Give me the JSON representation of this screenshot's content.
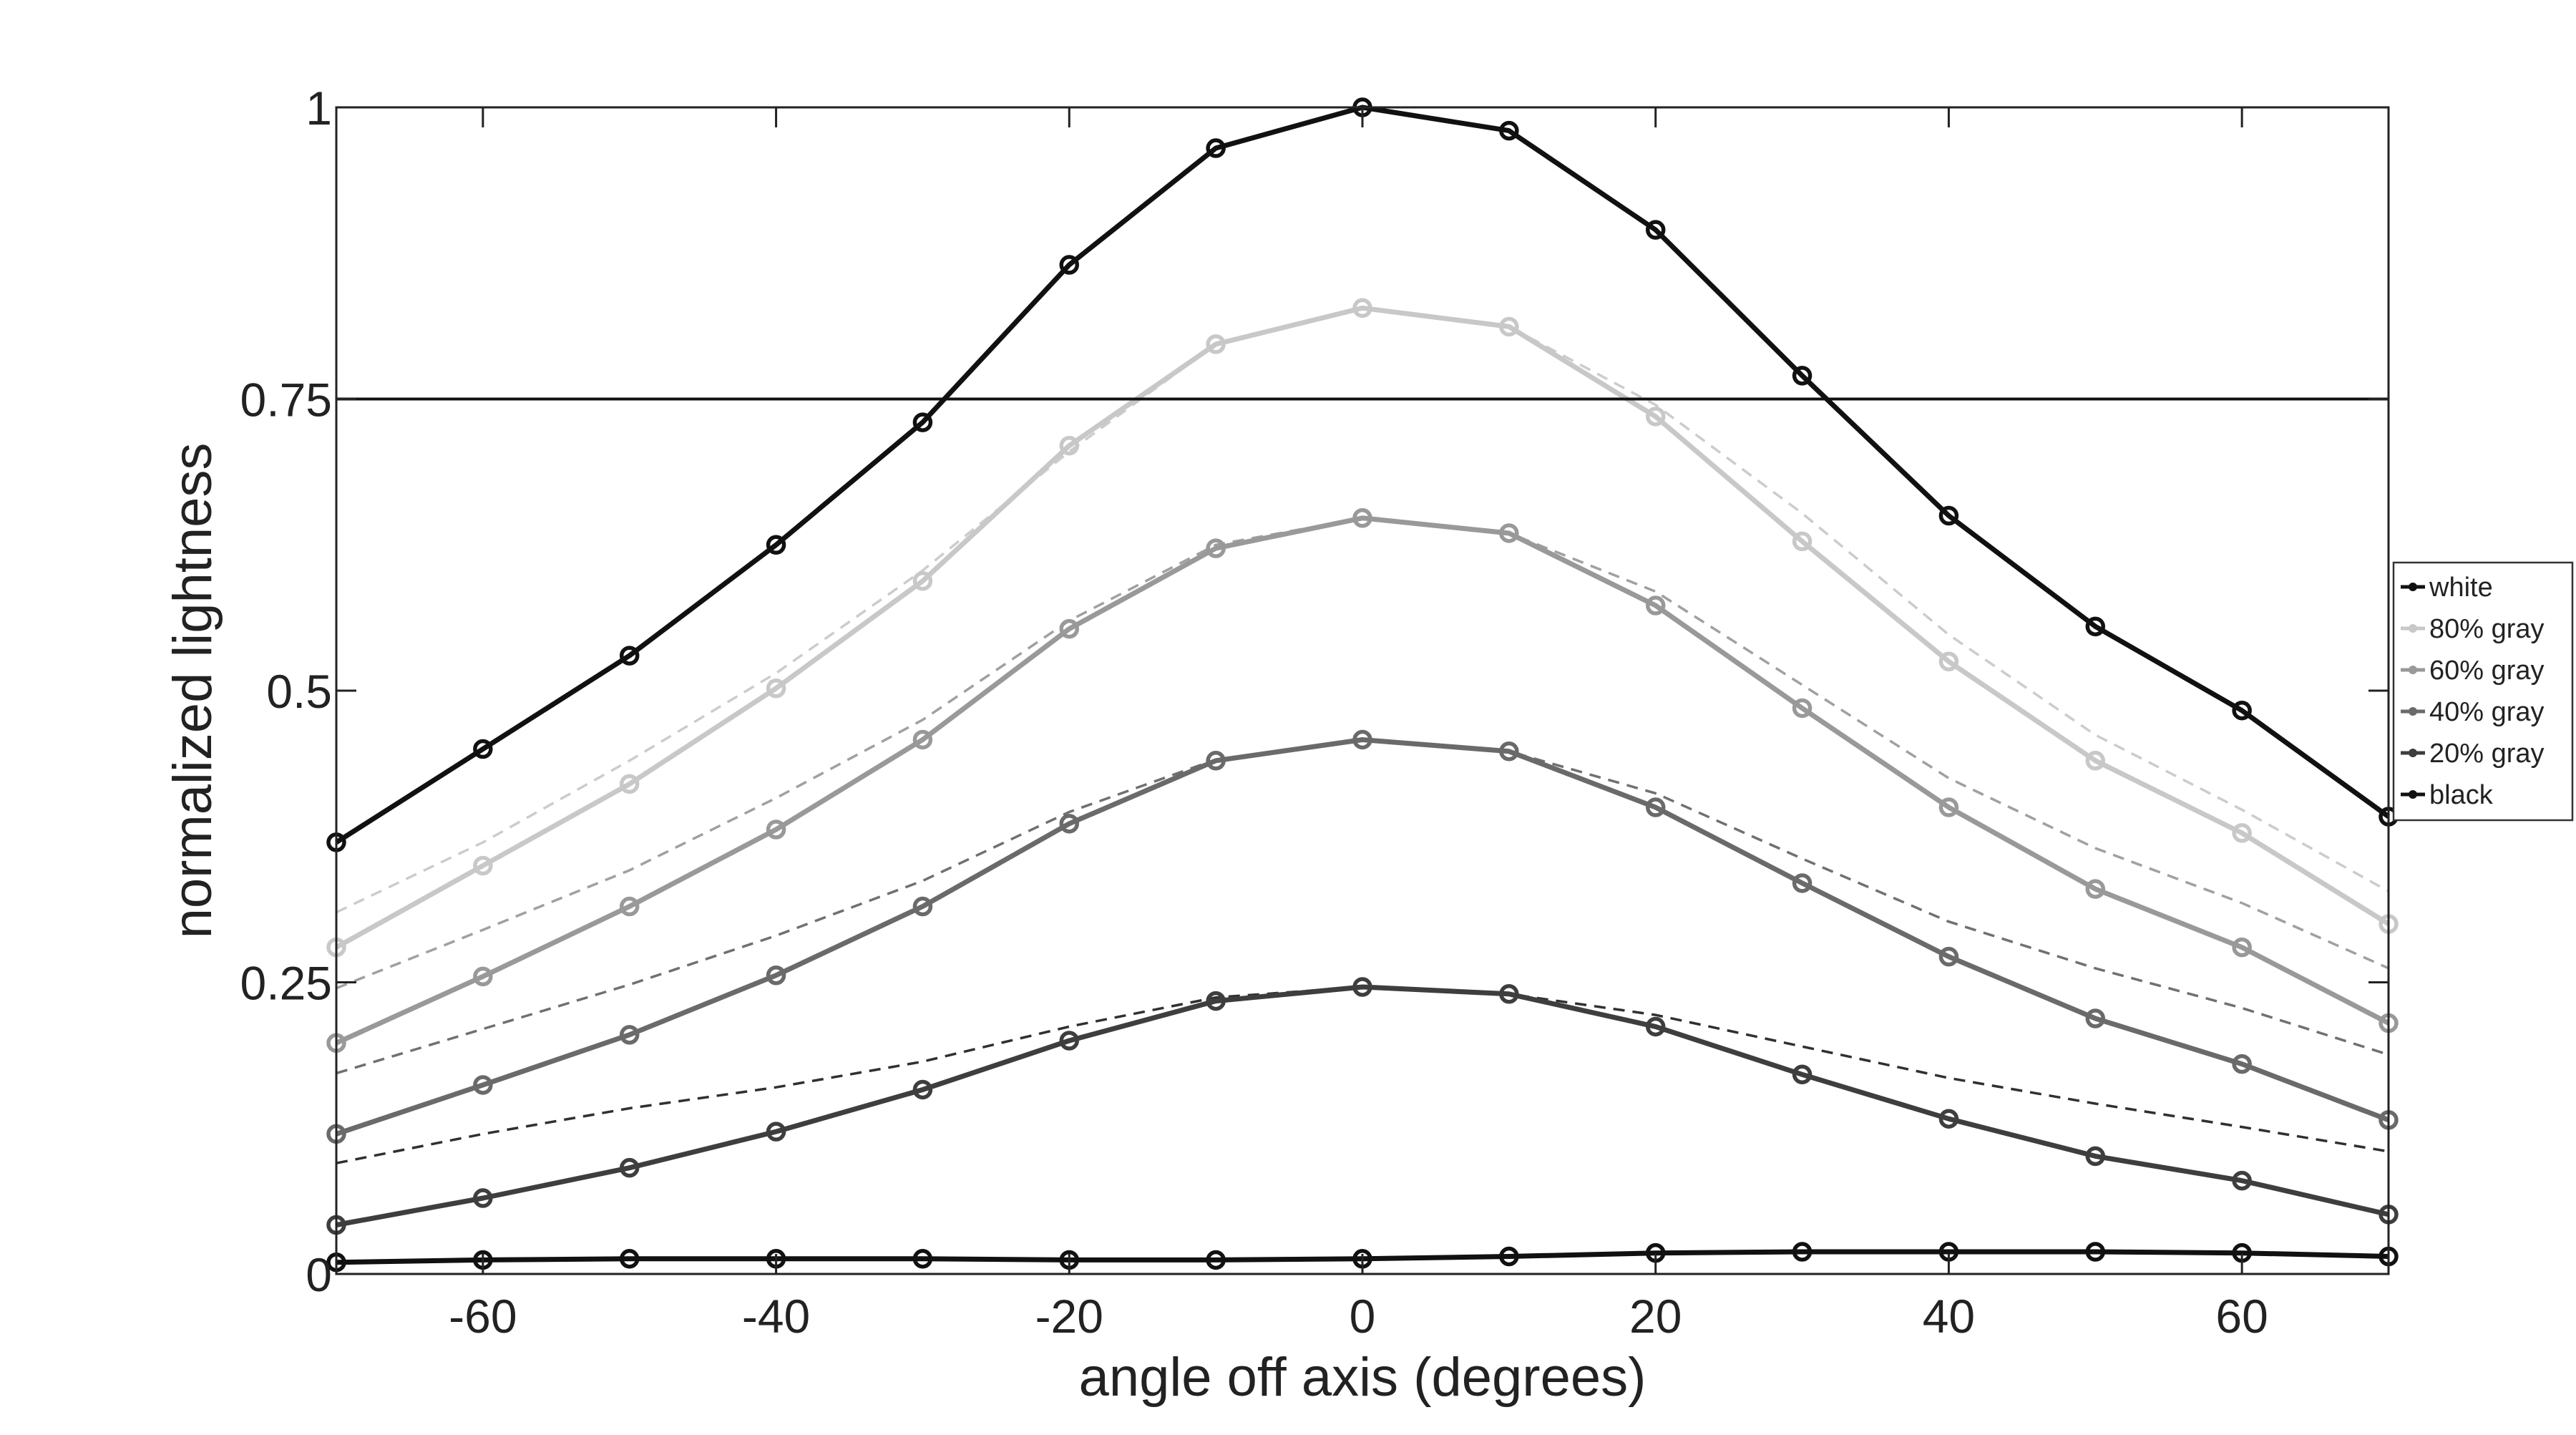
{
  "chart_data": {
    "type": "line",
    "title": "",
    "xlabel": "angle off axis (degrees)",
    "ylabel": "normalized lightness",
    "xlim": [
      -70,
      70
    ],
    "ylim": [
      0,
      1
    ],
    "xticks": [
      -60,
      -40,
      -20,
      0,
      20,
      40,
      60
    ],
    "xtick_labels": [
      "-60",
      "-40",
      "-20",
      "0",
      "20",
      "40",
      "60"
    ],
    "yticks": [
      0,
      0.25,
      0.5,
      0.75,
      1
    ],
    "ytick_labels": [
      "0",
      "0.25",
      "0.5",
      "0.75",
      "1"
    ],
    "grid": false,
    "legend_position": "right",
    "reference_line": {
      "y": 0.75
    },
    "x": [
      -70,
      -60,
      -50,
      -40,
      -30,
      -20,
      -10,
      0,
      10,
      20,
      30,
      40,
      50,
      60,
      70
    ],
    "series": [
      {
        "name": "white",
        "color": "#111111",
        "values": [
          0.37,
          0.45,
          0.53,
          0.625,
          0.73,
          0.865,
          0.965,
          1.0,
          0.98,
          0.895,
          0.77,
          0.65,
          0.555,
          0.483,
          0.392
        ]
      },
      {
        "name": "80% gray",
        "color": "#c8c8c8",
        "values": [
          0.28,
          0.35,
          0.42,
          0.502,
          0.594,
          0.71,
          0.797,
          0.828,
          0.812,
          0.735,
          0.628,
          0.525,
          0.44,
          0.378,
          0.3
        ]
      },
      {
        "name": "60% gray",
        "color": "#999999",
        "values": [
          0.198,
          0.255,
          0.315,
          0.381,
          0.458,
          0.553,
          0.622,
          0.648,
          0.635,
          0.573,
          0.485,
          0.4,
          0.33,
          0.28,
          0.215
        ]
      },
      {
        "name": "40% gray",
        "color": "#6a6a6a",
        "values": [
          0.12,
          0.162,
          0.205,
          0.256,
          0.315,
          0.386,
          0.44,
          0.458,
          0.448,
          0.4,
          0.335,
          0.272,
          0.219,
          0.18,
          0.132
        ]
      },
      {
        "name": "20% gray",
        "color": "#3e3e3e",
        "values": [
          0.042,
          0.065,
          0.091,
          0.122,
          0.158,
          0.2,
          0.234,
          0.246,
          0.24,
          0.212,
          0.171,
          0.133,
          0.101,
          0.08,
          0.051
        ]
      },
      {
        "name": "black",
        "color": "#111111",
        "values": [
          0.01,
          0.012,
          0.013,
          0.013,
          0.013,
          0.012,
          0.012,
          0.013,
          0.015,
          0.018,
          0.019,
          0.019,
          0.019,
          0.018,
          0.015
        ]
      }
    ],
    "reference_curves": [
      {
        "color": "#cccccc",
        "values": [
          0.31,
          0.37,
          0.44,
          0.515,
          0.603,
          0.705,
          0.797,
          0.828,
          0.812,
          0.745,
          0.652,
          0.548,
          0.462,
          0.398,
          0.328
        ]
      },
      {
        "color": "#a0a0a0",
        "values": [
          0.245,
          0.295,
          0.346,
          0.408,
          0.475,
          0.56,
          0.625,
          0.648,
          0.635,
          0.585,
          0.505,
          0.425,
          0.365,
          0.318,
          0.262
        ]
      },
      {
        "color": "#707070",
        "values": [
          0.172,
          0.21,
          0.248,
          0.29,
          0.337,
          0.396,
          0.441,
          0.458,
          0.448,
          0.412,
          0.356,
          0.302,
          0.262,
          0.228,
          0.188
        ]
      },
      {
        "color": "#303030",
        "values": [
          0.095,
          0.12,
          0.142,
          0.16,
          0.182,
          0.212,
          0.237,
          0.246,
          0.24,
          0.222,
          0.195,
          0.168,
          0.146,
          0.126,
          0.105
        ]
      }
    ]
  }
}
